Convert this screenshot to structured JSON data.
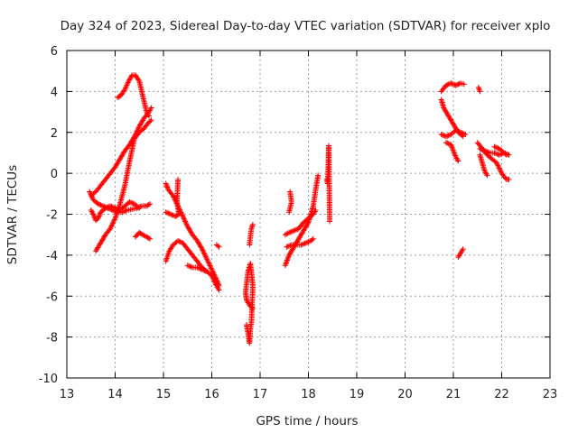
{
  "chart_data": {
    "type": "scatter",
    "title": "Day 324 of 2023, Sidereal Day-to-day VTEC variation (SDTVAR) for receiver xplo",
    "xlabel": "GPS time / hours",
    "ylabel": "SDTVAR / TECUs",
    "xlim": [
      13,
      23
    ],
    "ylim": [
      -10,
      6
    ],
    "x_ticks": [
      "13",
      "14",
      "15",
      "16",
      "17",
      "18",
      "19",
      "20",
      "21",
      "22",
      "23"
    ],
    "y_ticks": [
      "6",
      "4",
      "2",
      "0",
      "-2",
      "-4",
      "-6",
      "-8",
      "-10"
    ],
    "grid": true,
    "marker": "+",
    "color": "#ff0000",
    "segments": [
      {
        "name": "arc-1-lower",
        "points": [
          [
            13.47,
            -0.9
          ],
          [
            13.55,
            -1.3
          ],
          [
            13.65,
            -1.5
          ],
          [
            13.75,
            -1.6
          ],
          [
            13.85,
            -1.7
          ],
          [
            13.95,
            -1.8
          ],
          [
            14.05,
            -1.9
          ],
          [
            14.15,
            -1.9
          ],
          [
            14.25,
            -1.8
          ],
          [
            14.35,
            -1.75
          ],
          [
            14.45,
            -1.7
          ],
          [
            14.55,
            -1.6
          ],
          [
            14.65,
            -1.6
          ],
          [
            14.72,
            -1.5
          ]
        ]
      },
      {
        "name": "arc-1-wave",
        "points": [
          [
            13.5,
            -1.8
          ],
          [
            13.55,
            -2.0
          ],
          [
            13.6,
            -2.3
          ],
          [
            13.65,
            -2.2
          ],
          [
            13.7,
            -1.9
          ],
          [
            13.8,
            -1.7
          ],
          [
            13.9,
            -1.6
          ],
          [
            14.0,
            -1.7
          ],
          [
            14.1,
            -1.8
          ],
          [
            14.2,
            -1.6
          ],
          [
            14.3,
            -1.4
          ],
          [
            14.4,
            -1.5
          ],
          [
            14.5,
            -1.7
          ]
        ]
      },
      {
        "name": "arc-1-rise",
        "points": [
          [
            13.5,
            -1.1
          ],
          [
            13.6,
            -0.9
          ],
          [
            13.7,
            -0.6
          ],
          [
            13.8,
            -0.3
          ],
          [
            13.9,
            0.0
          ],
          [
            14.0,
            0.3
          ],
          [
            14.1,
            0.7
          ],
          [
            14.2,
            1.1
          ],
          [
            14.3,
            1.4
          ],
          [
            14.4,
            1.8
          ],
          [
            14.5,
            2.3
          ],
          [
            14.6,
            2.7
          ],
          [
            14.7,
            3.0
          ],
          [
            14.75,
            3.2
          ]
        ]
      },
      {
        "name": "arc-1-upper",
        "points": [
          [
            13.6,
            -3.8
          ],
          [
            13.7,
            -3.4
          ],
          [
            13.8,
            -3.0
          ],
          [
            13.9,
            -2.7
          ],
          [
            14.0,
            -2.2
          ],
          [
            14.1,
            -1.5
          ],
          [
            14.2,
            -0.6
          ],
          [
            14.3,
            0.6
          ],
          [
            14.4,
            1.7
          ],
          [
            14.5,
            2.0
          ],
          [
            14.6,
            2.2
          ],
          [
            14.7,
            2.5
          ],
          [
            14.75,
            2.6
          ]
        ]
      },
      {
        "name": "arc-1-peak",
        "points": [
          [
            14.05,
            3.7
          ],
          [
            14.12,
            3.8
          ],
          [
            14.2,
            4.1
          ],
          [
            14.28,
            4.5
          ],
          [
            14.35,
            4.8
          ],
          [
            14.42,
            4.8
          ],
          [
            14.5,
            4.5
          ],
          [
            14.55,
            4.0
          ],
          [
            14.6,
            3.5
          ],
          [
            14.65,
            3.0
          ],
          [
            14.7,
            2.8
          ]
        ]
      },
      {
        "name": "arc-1-tail",
        "points": [
          [
            14.42,
            -3.1
          ],
          [
            14.5,
            -2.9
          ],
          [
            14.57,
            -3.0
          ],
          [
            14.65,
            -3.1
          ],
          [
            14.72,
            -3.2
          ]
        ]
      },
      {
        "name": "arc-2-a",
        "points": [
          [
            15.05,
            -0.5
          ],
          [
            15.1,
            -0.8
          ],
          [
            15.2,
            -1.1
          ],
          [
            15.3,
            -1.6
          ],
          [
            15.4,
            -2.1
          ],
          [
            15.5,
            -2.6
          ],
          [
            15.6,
            -3.0
          ],
          [
            15.7,
            -3.3
          ],
          [
            15.8,
            -3.7
          ],
          [
            15.9,
            -4.2
          ],
          [
            16.0,
            -4.7
          ],
          [
            16.1,
            -5.2
          ],
          [
            16.15,
            -5.5
          ]
        ]
      },
      {
        "name": "arc-2-b",
        "points": [
          [
            15.05,
            -4.3
          ],
          [
            15.12,
            -3.8
          ],
          [
            15.2,
            -3.5
          ],
          [
            15.3,
            -3.3
          ],
          [
            15.4,
            -3.4
          ],
          [
            15.5,
            -3.7
          ],
          [
            15.6,
            -4.0
          ],
          [
            15.7,
            -4.3
          ],
          [
            15.8,
            -4.6
          ],
          [
            15.9,
            -4.8
          ],
          [
            16.0,
            -5.0
          ],
          [
            16.1,
            -5.5
          ],
          [
            16.15,
            -5.7
          ]
        ]
      },
      {
        "name": "arc-2-c",
        "points": [
          [
            15.5,
            -4.5
          ],
          [
            15.6,
            -4.6
          ],
          [
            15.7,
            -4.6
          ],
          [
            15.8,
            -4.7
          ],
          [
            15.9,
            -4.8
          ]
        ]
      },
      {
        "name": "arc-2-d",
        "points": [
          [
            15.05,
            -1.9
          ],
          [
            15.15,
            -2.0
          ],
          [
            15.25,
            -2.1
          ],
          [
            15.32,
            -2.0
          ],
          [
            15.28,
            -1.4
          ],
          [
            15.3,
            -0.3
          ]
        ]
      },
      {
        "name": "arc-2-e",
        "points": [
          [
            16.1,
            -3.5
          ],
          [
            16.15,
            -3.6
          ]
        ]
      },
      {
        "name": "arc-3",
        "points": [
          [
            16.72,
            -7.4
          ],
          [
            16.75,
            -7.8
          ],
          [
            16.78,
            -8.3
          ],
          [
            16.8,
            -7.6
          ],
          [
            16.82,
            -7.3
          ],
          [
            16.85,
            -5.5
          ],
          [
            16.8,
            -4.4
          ],
          [
            16.75,
            -4.8
          ],
          [
            16.7,
            -5.8
          ],
          [
            16.72,
            -6.2
          ],
          [
            16.8,
            -6.5
          ],
          [
            16.85,
            -6.6
          ]
        ]
      },
      {
        "name": "arc-3-b",
        "points": [
          [
            16.78,
            -3.5
          ],
          [
            16.82,
            -2.7
          ],
          [
            16.85,
            -2.5
          ]
        ]
      },
      {
        "name": "arc-4-a",
        "points": [
          [
            17.52,
            -4.5
          ],
          [
            17.6,
            -4.0
          ],
          [
            17.7,
            -3.6
          ],
          [
            17.8,
            -3.2
          ],
          [
            17.9,
            -2.8
          ],
          [
            18.0,
            -2.4
          ],
          [
            18.1,
            -1.6
          ],
          [
            18.15,
            -0.8
          ],
          [
            18.2,
            -0.1
          ]
        ]
      },
      {
        "name": "arc-4-b",
        "points": [
          [
            17.52,
            -3.0
          ],
          [
            17.6,
            -2.9
          ],
          [
            17.7,
            -2.8
          ],
          [
            17.8,
            -2.7
          ],
          [
            17.9,
            -2.4
          ],
          [
            18.0,
            -2.2
          ],
          [
            18.1,
            -2.0
          ],
          [
            18.15,
            -1.8
          ]
        ]
      },
      {
        "name": "arc-4-c",
        "points": [
          [
            17.55,
            -3.6
          ],
          [
            17.65,
            -3.5
          ],
          [
            17.75,
            -3.5
          ],
          [
            17.85,
            -3.5
          ],
          [
            17.95,
            -3.4
          ],
          [
            18.05,
            -3.3
          ],
          [
            18.1,
            -3.2
          ]
        ]
      },
      {
        "name": "arc-4-d",
        "points": [
          [
            17.6,
            -1.9
          ],
          [
            17.65,
            -1.4
          ],
          [
            17.62,
            -0.9
          ]
        ]
      },
      {
        "name": "arc-4-e",
        "points": [
          [
            18.38,
            -0.3
          ],
          [
            18.4,
            -0.5
          ],
          [
            18.42,
            1.35
          ],
          [
            18.44,
            -2.35
          ]
        ]
      },
      {
        "name": "arc-5-a",
        "points": [
          [
            20.75,
            1.9
          ],
          [
            20.85,
            1.8
          ],
          [
            20.95,
            1.9
          ],
          [
            21.05,
            2.1
          ],
          [
            21.15,
            2.0
          ],
          [
            21.25,
            1.9
          ]
        ]
      },
      {
        "name": "arc-5-b",
        "points": [
          [
            20.75,
            3.6
          ],
          [
            20.8,
            3.2
          ],
          [
            20.9,
            2.8
          ],
          [
            21.0,
            2.4
          ],
          [
            21.1,
            2.0
          ],
          [
            21.2,
            1.8
          ]
        ]
      },
      {
        "name": "arc-5-c",
        "points": [
          [
            20.75,
            4.0
          ],
          [
            20.85,
            4.3
          ],
          [
            20.95,
            4.4
          ],
          [
            21.05,
            4.3
          ],
          [
            21.15,
            4.4
          ],
          [
            21.22,
            4.35
          ]
        ]
      },
      {
        "name": "arc-5-d",
        "points": [
          [
            20.85,
            1.5
          ],
          [
            20.95,
            1.4
          ],
          [
            21.05,
            0.8
          ],
          [
            21.1,
            0.6
          ]
        ]
      },
      {
        "name": "arc-5-e",
        "points": [
          [
            21.1,
            -4.1
          ],
          [
            21.15,
            -3.9
          ],
          [
            21.2,
            -3.7
          ]
        ]
      },
      {
        "name": "arc-5-f",
        "points": [
          [
            21.52,
            4.2
          ],
          [
            21.55,
            4.0
          ]
        ]
      },
      {
        "name": "arc-6-a",
        "points": [
          [
            21.5,
            1.5
          ],
          [
            21.6,
            1.2
          ],
          [
            21.7,
            0.9
          ],
          [
            21.8,
            0.7
          ],
          [
            21.9,
            0.5
          ],
          [
            22.0,
            0.0
          ],
          [
            22.1,
            -0.3
          ],
          [
            22.15,
            -0.3
          ]
        ]
      },
      {
        "name": "arc-6-b",
        "points": [
          [
            21.55,
            1.2
          ],
          [
            21.65,
            1.1
          ],
          [
            21.75,
            1.0
          ],
          [
            21.85,
            1.0
          ],
          [
            21.95,
            0.9
          ],
          [
            22.05,
            1.0
          ],
          [
            22.15,
            0.9
          ]
        ]
      },
      {
        "name": "arc-6-c",
        "points": [
          [
            21.55,
            0.9
          ],
          [
            21.6,
            0.5
          ],
          [
            21.65,
            0.1
          ],
          [
            21.7,
            -0.1
          ]
        ]
      },
      {
        "name": "arc-6-d",
        "points": [
          [
            21.85,
            1.3
          ],
          [
            21.95,
            1.2
          ],
          [
            22.05,
            1.0
          ],
          [
            22.1,
            0.9
          ]
        ]
      }
    ]
  }
}
